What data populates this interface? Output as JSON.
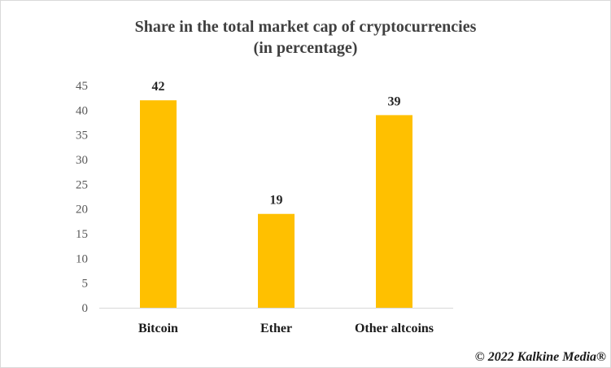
{
  "chart_data": {
    "type": "bar",
    "title_lines": [
      "Share in  the total market cap of cryptocurrencies",
      "(in percentage)"
    ],
    "categories": [
      "Bitcoin",
      "Ether",
      "Other altcoins"
    ],
    "values": [
      42,
      19,
      39
    ],
    "ylim": [
      0,
      45
    ],
    "yticks": [
      0,
      5,
      10,
      15,
      20,
      25,
      30,
      35,
      40,
      45
    ],
    "xlabel": "",
    "ylabel": "",
    "grid": false,
    "bar_color": "#ffc000",
    "data_labels": true
  },
  "watermark": "© 2022 Kalkine Media®"
}
